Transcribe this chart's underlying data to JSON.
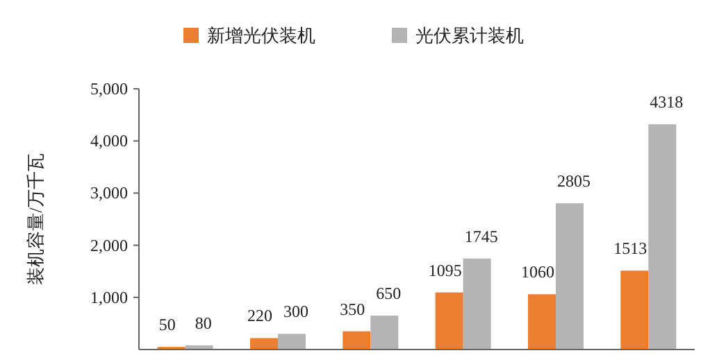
{
  "chart_data": {
    "type": "bar",
    "ylabel": "装机容量/万千瓦",
    "categories": [
      null,
      null,
      null,
      null,
      null,
      null
    ],
    "series": [
      {
        "name": "新增光伏装机",
        "color": "#ed7d31",
        "values": [
          50,
          220,
          350,
          1095,
          1060,
          1513
        ]
      },
      {
        "name": "光伏累计装机",
        "color": "#b4b4b4",
        "values": [
          80,
          300,
          650,
          1745,
          2805,
          4318
        ]
      }
    ],
    "ylim": [
      0,
      5000
    ],
    "yticks": [
      {
        "value": 1000,
        "label": "1,000"
      },
      {
        "value": 2000,
        "label": "2,000"
      },
      {
        "value": 3000,
        "label": "3,000"
      },
      {
        "value": 4000,
        "label": "4,000"
      },
      {
        "value": 5000,
        "label": "5,000"
      }
    ],
    "data_labels": true,
    "legend": "top",
    "tick_labels": "y",
    "grid": false
  }
}
